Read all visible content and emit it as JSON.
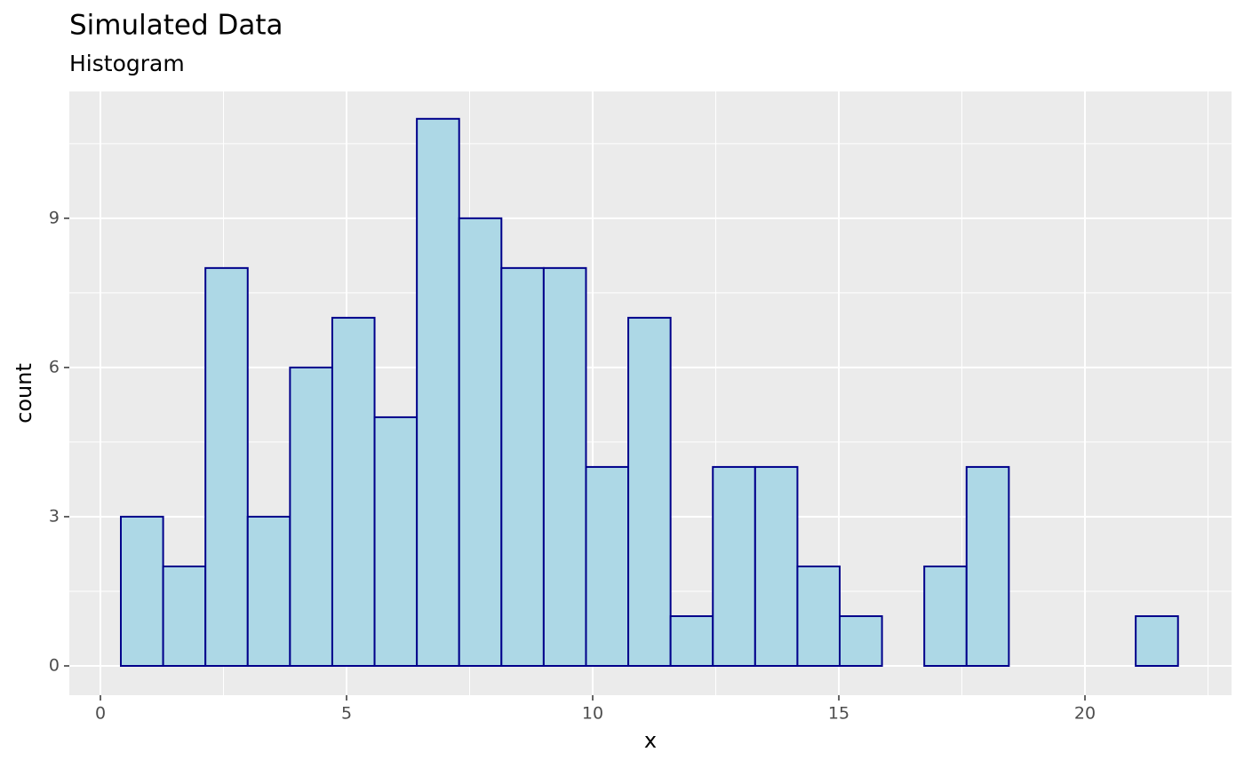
{
  "chart_data": {
    "type": "histogram",
    "title": "Simulated Data",
    "subtitle": "Histogram",
    "x_label": "x",
    "y_label": "count",
    "bins": [
      0.415,
      1.274,
      2.133,
      2.992,
      3.851,
      4.71,
      5.569,
      6.428,
      7.287,
      8.146,
      9.005,
      9.864,
      10.723,
      11.582,
      12.441,
      13.3,
      14.159,
      15.018,
      15.877,
      16.736,
      17.595,
      18.454,
      19.313,
      20.172,
      21.031,
      21.89
    ],
    "counts": [
      3,
      2,
      8,
      3,
      6,
      7,
      5,
      11,
      9,
      8,
      8,
      4,
      7,
      1,
      4,
      4,
      2,
      1,
      0,
      2,
      4,
      0,
      0,
      0,
      1
    ],
    "color": "#add8e6",
    "edge_color": "#00008b",
    "xlim": [
      -0.632,
      22.978
    ],
    "ylim": [
      -0.589,
      11.55
    ],
    "xticks": [
      0,
      5,
      10,
      15,
      20
    ],
    "yticks": [
      0,
      3,
      6,
      9
    ],
    "grid": true
  }
}
